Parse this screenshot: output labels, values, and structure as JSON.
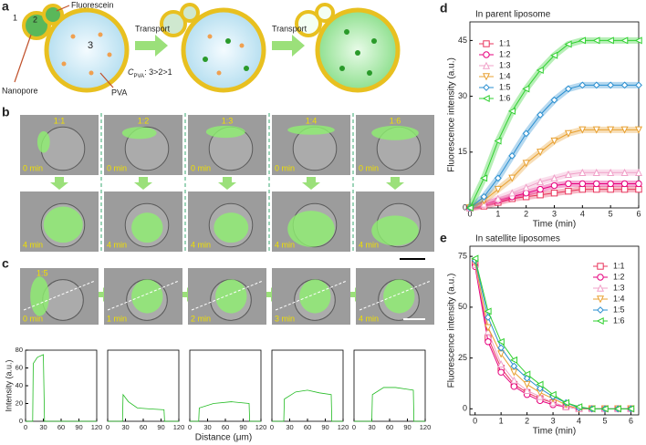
{
  "panel_a": {
    "label": "a",
    "numbers": [
      "1",
      "2",
      "3"
    ],
    "fluorescein": "Fluorescein",
    "nanopore": "Nanopore",
    "pva": "PVA",
    "transport": [
      "Transport",
      "Transport"
    ],
    "cpva": "C",
    "cpva_sub": "PVA",
    "cpva_rel": ": 3>2>1"
  },
  "panel_b": {
    "label": "b",
    "ratios": [
      "1:1",
      "1:2",
      "1:3",
      "1:4",
      "1:6"
    ],
    "times": [
      "0 min",
      "4 min"
    ]
  },
  "panel_c": {
    "label": "c",
    "ratio": "1:5",
    "times": [
      "0 min",
      "1 min",
      "2 min",
      "3 min",
      "4 min"
    ]
  },
  "chart_data": [
    {
      "type": "line",
      "label": "d",
      "title": "In parent liposome",
      "x_label": "Time (min)",
      "y_label": "Fluorescence intensity (a.u.)",
      "x": [
        0,
        0.5,
        1,
        1.5,
        2,
        2.5,
        3,
        3.5,
        4,
        4.5,
        5,
        5.5,
        6
      ],
      "xlim": [
        0,
        6
      ],
      "xticks": [
        0,
        1,
        2,
        3,
        4,
        5,
        6
      ],
      "ylim": [
        0,
        50
      ],
      "yticks": [
        0,
        15,
        30,
        45
      ],
      "legend": "upper-left",
      "series": [
        {
          "name": "1:1",
          "color": "#e8365d",
          "marker": "square",
          "values": [
            0,
            0.5,
            1.5,
            2.5,
            3,
            3.5,
            4,
            4.5,
            5,
            5,
            5,
            5,
            5
          ]
        },
        {
          "name": "1:2",
          "color": "#e6007e",
          "marker": "circle",
          "values": [
            0,
            1,
            2,
            3,
            4,
            5,
            6,
            6.5,
            6.5,
            6.5,
            6.5,
            6.5,
            6.5
          ]
        },
        {
          "name": "1:3",
          "color": "#f0a0c8",
          "marker": "triangle-up",
          "values": [
            0,
            1,
            2.5,
            4,
            5.5,
            7,
            8,
            9,
            9.5,
            9.5,
            9.5,
            9.5,
            9.5
          ]
        },
        {
          "name": "1:4",
          "color": "#e8a030",
          "marker": "triangle-down",
          "values": [
            0,
            2,
            5,
            8,
            12,
            15,
            18,
            20,
            21,
            21,
            21,
            21,
            21
          ]
        },
        {
          "name": "1:5",
          "color": "#2a8fd0",
          "marker": "diamond",
          "values": [
            0,
            3,
            8,
            14,
            20,
            25,
            29,
            32,
            33,
            33,
            33,
            33,
            33
          ]
        },
        {
          "name": "1:6",
          "color": "#30d030",
          "marker": "triangle-left",
          "values": [
            0,
            8,
            18,
            26,
            32,
            37,
            41,
            44,
            45,
            45,
            45,
            45,
            45
          ]
        }
      ]
    },
    {
      "type": "line",
      "label": "e",
      "title": "In satellite liposomes",
      "x_label": "Time (min)",
      "y_label": "Fluorescence intensity (a.u.)",
      "x": [
        0,
        0.5,
        1,
        1.5,
        2,
        2.5,
        3,
        3.5,
        4,
        4.5,
        5,
        5.5,
        6
      ],
      "xlim": [
        -0.2,
        6.3
      ],
      "xticks": [
        0,
        1,
        2,
        3,
        4,
        5,
        6
      ],
      "ylim": [
        -3,
        80
      ],
      "yticks": [
        0,
        25,
        50,
        75
      ],
      "legend": "upper-right",
      "series": [
        {
          "name": "1:1",
          "color": "#e8365d",
          "marker": "square",
          "values": [
            72,
            35,
            20,
            12,
            8,
            5,
            3,
            1,
            0,
            0,
            0,
            0,
            0
          ]
        },
        {
          "name": "1:2",
          "color": "#e6007e",
          "marker": "circle",
          "values": [
            70,
            33,
            18,
            11,
            7,
            4,
            2,
            1,
            0,
            0,
            0,
            0,
            0
          ]
        },
        {
          "name": "1:3",
          "color": "#f0a0c8",
          "marker": "triangle-up",
          "values": [
            71,
            38,
            22,
            14,
            9,
            6,
            3,
            1,
            0,
            0,
            0,
            0,
            0
          ]
        },
        {
          "name": "1:4",
          "color": "#e8a030",
          "marker": "triangle-down",
          "values": [
            72,
            40,
            27,
            18,
            12,
            8,
            5,
            2,
            0,
            0,
            0,
            0,
            0
          ]
        },
        {
          "name": "1:5",
          "color": "#2a8fd0",
          "marker": "diamond",
          "values": [
            73,
            45,
            30,
            21,
            15,
            10,
            6,
            3,
            0.5,
            0,
            0,
            0,
            0
          ]
        },
        {
          "name": "1:6",
          "color": "#30d030",
          "marker": "triangle-left",
          "values": [
            74,
            48,
            33,
            24,
            17,
            12,
            7,
            3,
            1,
            0,
            0,
            0,
            0
          ]
        }
      ]
    },
    {
      "type": "line",
      "y_label": "Intensity (a.u.)",
      "color": "#22bb22",
      "x": [
        0,
        12,
        13,
        20,
        30,
        32,
        33,
        120
      ],
      "values": [
        0,
        0,
        65,
        72,
        75,
        0,
        0,
        0
      ],
      "xlim": [
        0,
        120
      ],
      "xticks": [
        0,
        30,
        60,
        90,
        120
      ],
      "ylim": [
        0,
        80
      ],
      "yticks": [
        0,
        20,
        40,
        60,
        80
      ]
    },
    {
      "type": "line",
      "color": "#22bb22",
      "x": [
        0,
        25,
        26,
        35,
        50,
        70,
        95,
        96,
        120
      ],
      "values": [
        0,
        0,
        30,
        22,
        15,
        14,
        13,
        0,
        0
      ],
      "xlim": [
        0,
        120
      ],
      "xticks": [
        0,
        30,
        60,
        90,
        120
      ],
      "ylim": [
        0,
        80
      ]
    },
    {
      "type": "line",
      "x_label": "Distance (μm)",
      "color": "#22bb22",
      "x": [
        0,
        15,
        16,
        40,
        70,
        100,
        101,
        120
      ],
      "values": [
        0,
        0,
        15,
        20,
        22,
        20,
        0,
        0
      ],
      "xlim": [
        0,
        120
      ],
      "xticks": [
        0,
        30,
        60,
        90,
        120
      ],
      "ylim": [
        0,
        80
      ]
    },
    {
      "type": "line",
      "color": "#22bb22",
      "x": [
        0,
        20,
        21,
        40,
        60,
        80,
        100,
        101,
        120
      ],
      "values": [
        0,
        0,
        25,
        33,
        35,
        32,
        30,
        0,
        0
      ],
      "xlim": [
        0,
        120
      ],
      "xticks": [
        0,
        30,
        60,
        90,
        120
      ],
      "ylim": [
        0,
        80
      ]
    },
    {
      "type": "line",
      "color": "#22bb22",
      "x": [
        0,
        30,
        31,
        50,
        70,
        90,
        100,
        101,
        120
      ],
      "values": [
        0,
        0,
        30,
        38,
        38,
        36,
        35,
        0,
        0
      ],
      "xlim": [
        0,
        120
      ],
      "xticks": [
        0,
        30,
        60,
        90,
        120
      ],
      "ylim": [
        0,
        80
      ]
    }
  ]
}
